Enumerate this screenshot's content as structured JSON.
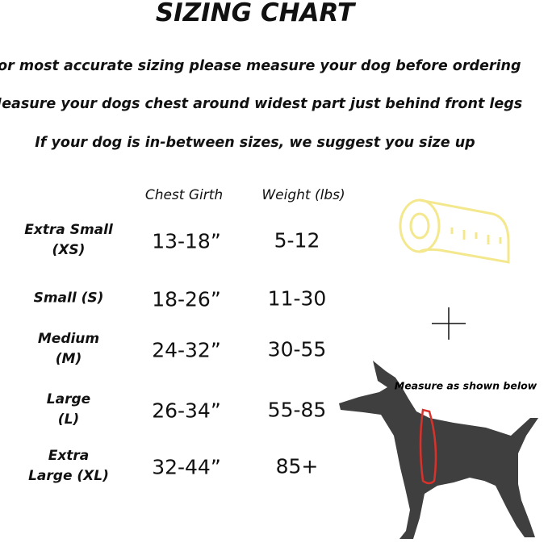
{
  "title": "SIZING CHART",
  "notes": [
    "For most accurate sizing please measure your dog before ordering",
    "Measure your dogs chest around widest part just behind front legs",
    "If your dog is in-between sizes, we suggest you size up"
  ],
  "table": {
    "columns": [
      "Chest Girth",
      "Weight (lbs)"
    ],
    "rows": [
      {
        "size": [
          "Extra Small",
          "(XS)"
        ],
        "chest": "13-18”",
        "weight": "5-12"
      },
      {
        "size": [
          "Small (S)"
        ],
        "chest": "18-26”",
        "weight": "11-30"
      },
      {
        "size": [
          "Medium",
          "(M)"
        ],
        "chest": "24-32”",
        "weight": "30-55"
      },
      {
        "size": [
          "Large",
          "(L)"
        ],
        "chest": "26-34”",
        "weight": "55-85"
      },
      {
        "size": [
          "Extra",
          "Large (XL)"
        ],
        "chest": "32-44”",
        "weight": "85+"
      }
    ]
  },
  "illustration": {
    "caption": "Measure as shown below"
  }
}
